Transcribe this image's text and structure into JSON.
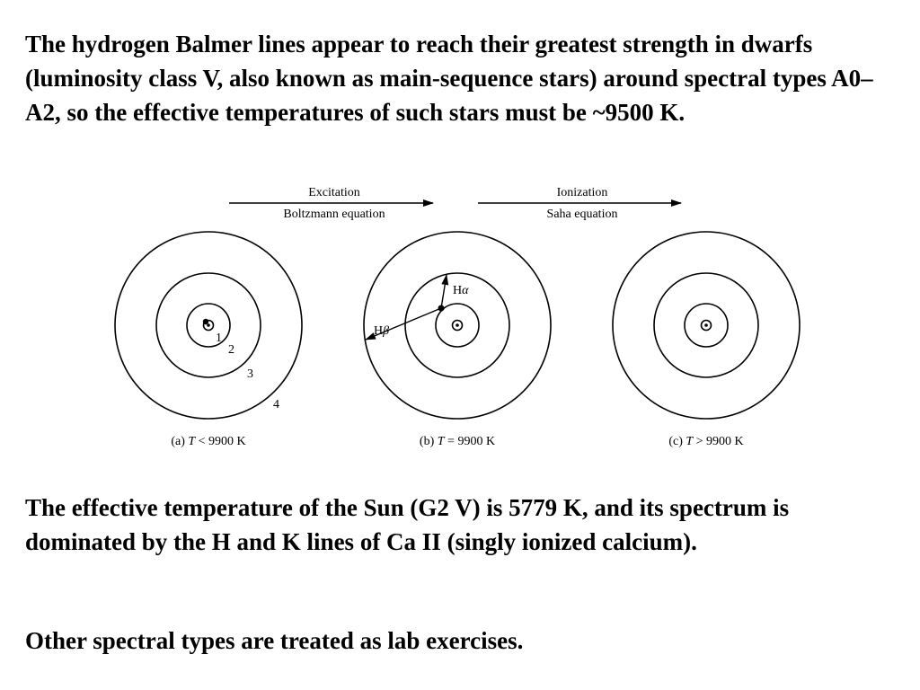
{
  "paragraphs": {
    "p1": "The hydrogen Balmer lines appear to reach their greatest strength in dwarfs (luminosity class V, also known as main-sequence stars) around spectral types A0–A2, so the effective temperatures of such stars must be ~9500 K.",
    "p2": "The effective temperature of the Sun (G2 V) is 5779 K, and its spectrum is dominated by the H and K lines of Ca II (singly ionized calcium).",
    "p3": "Other spectral types are treated as lab exercises."
  },
  "diagram": {
    "arrow_excitation": {
      "top": "Excitation",
      "bottom": "Boltzmann equation"
    },
    "arrow_ionization": {
      "top": "Ionization",
      "bottom": "Saha equation"
    },
    "level_labels": [
      "1",
      "2",
      "3",
      "4"
    ],
    "transitions": {
      "alpha": "α",
      "beta": "β",
      "prefix": "H"
    },
    "captions": {
      "a": {
        "prefix": "(a) ",
        "var": "T",
        "rest": " < 9900 K"
      },
      "b": {
        "prefix": "(b) ",
        "var": "T",
        "rest": " = 9900 K"
      },
      "c": {
        "prefix": "(c) ",
        "var": "T",
        "rest": " > 9900 K"
      }
    }
  }
}
